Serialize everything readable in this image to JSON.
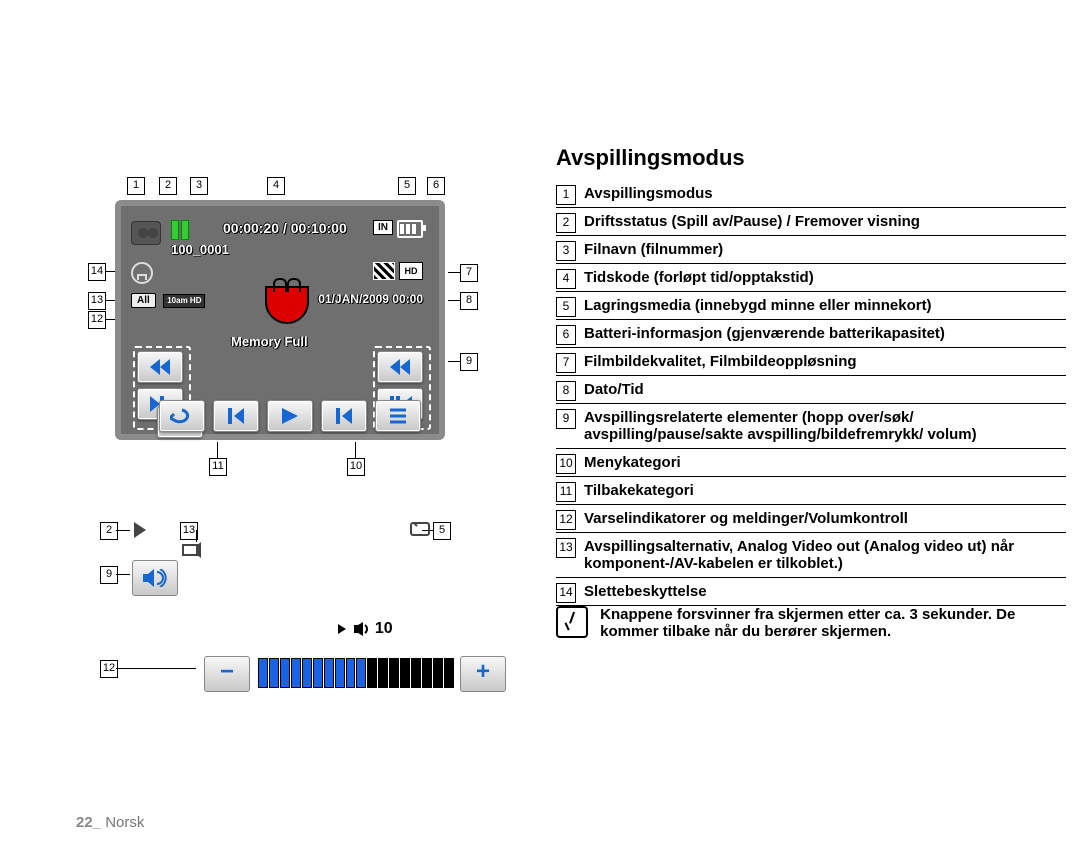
{
  "title": "Avspillingsmodus",
  "top": {
    "timecode": "00:00:20 / 00:10:00",
    "filenum": "100_0001",
    "in_badge": "IN",
    "hd_badge": "HD",
    "all_cap": "All",
    "hd10": "10am\nHD",
    "datetime": "01/JAN/2009 00:00",
    "memfull": "Memory Full"
  },
  "callouts_top": {
    "c1": "1",
    "c2": "2",
    "c3": "3",
    "c4": "4",
    "c5": "5",
    "c6": "6",
    "c7": "7",
    "c8": "8",
    "c9": "9",
    "c10": "10",
    "c11": "11",
    "c12": "12",
    "c13": "13",
    "c14": "14"
  },
  "mini": {
    "c2": "2",
    "c5": "5",
    "c9": "9",
    "c12": "12",
    "vol": "10"
  },
  "list": [
    {
      "n": "1",
      "t": "Avspillingsmodus"
    },
    {
      "n": "2",
      "t": "Driftsstatus (Spill av/Pause) / Fremover visning"
    },
    {
      "n": "3",
      "t": "Filnavn (filnummer)"
    },
    {
      "n": "4",
      "t": "Tidskode (forløpt tid/opptakstid)"
    },
    {
      "n": "5",
      "t": "Lagringsmedia (innebygd minne eller minnekort)"
    },
    {
      "n": "6",
      "t": "Batteri-informasjon (gjenværende batterikapasitet)"
    },
    {
      "n": "7",
      "t": "Filmbildekvalitet, Filmbildeoppløsning"
    },
    {
      "n": "8",
      "t": "Dato/Tid"
    },
    {
      "n": "9",
      "t": "Avspillingsrelaterte elementer (hopp over/søk/ avspilling/pause/sakte avspilling/bildefremrykk/ volum)"
    },
    {
      "n": "10",
      "t": "Menykategori"
    },
    {
      "n": "11",
      "t": "Tilbakekategori"
    },
    {
      "n": "12",
      "t": "Varselindikatorer og meldinger/Volumkontroll"
    },
    {
      "n": "13",
      "t": "Avspillingsalternativ, Analog Video out (Analog video ut) når komponent-/AV-kabelen er tilkoblet.)"
    },
    {
      "n": "14",
      "t": "Slettebeskyttelse"
    }
  ],
  "note": "Knappene forsvinner fra skjermen etter ca. 3 sekunder. De kommer tilbake når du berører skjermen.",
  "footer_page": "22_",
  "footer_lang": " Norsk"
}
